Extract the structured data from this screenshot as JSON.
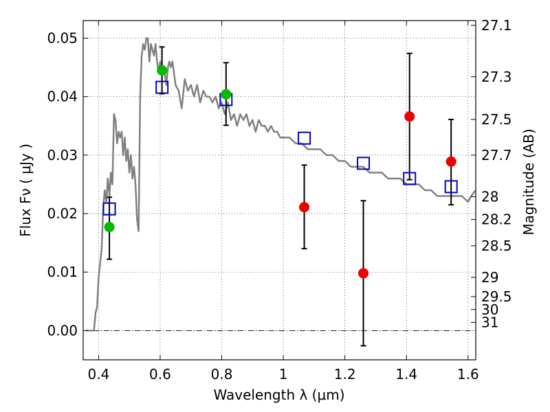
{
  "chart_data": {
    "type": "scatter",
    "xlabel": "Wavelength  λ (μm)",
    "ylabel": "Flux  Fν  ( μJy )",
    "y2label": "Magnitude (AB)",
    "xlim": [
      0.35,
      1.625
    ],
    "ylim": [
      -0.005,
      0.053
    ],
    "grid": true,
    "x_ticks": [
      0.4,
      0.6,
      0.8,
      1.0,
      1.2,
      1.4,
      1.6
    ],
    "x_tick_labels": [
      "0.4",
      "0.6",
      "0.8",
      "1",
      "1.2",
      "1.4",
      "1.6"
    ],
    "y_ticks": [
      0.0,
      0.01,
      0.02,
      0.03,
      0.04,
      0.05
    ],
    "y_tick_labels": [
      "0.00",
      "0.01",
      "0.02",
      "0.03",
      "0.04",
      "0.05"
    ],
    "y2_ticks": [
      {
        "label": "27.1",
        "flux": 0.0522
      },
      {
        "label": "27.3",
        "flux": 0.0434
      },
      {
        "label": "27.5",
        "flux": 0.0361
      },
      {
        "label": "27.7",
        "flux": 0.03
      },
      {
        "label": "28",
        "flux": 0.0229
      },
      {
        "label": "28.2",
        "flux": 0.019
      },
      {
        "label": "28.5",
        "flux": 0.0145
      },
      {
        "label": "29",
        "flux": 0.0091
      },
      {
        "label": "29.5",
        "flux": 0.0058
      },
      {
        "label": "30",
        "flux": 0.0036
      },
      {
        "label": "31",
        "flux": 0.0014
      }
    ],
    "sed_model": {
      "color": "#808080",
      "x": [
        0.36,
        0.38,
        0.385,
        0.39,
        0.395,
        0.4,
        0.41,
        0.415,
        0.42,
        0.425,
        0.43,
        0.435,
        0.44,
        0.445,
        0.45,
        0.455,
        0.46,
        0.465,
        0.47,
        0.475,
        0.48,
        0.485,
        0.49,
        0.495,
        0.5,
        0.505,
        0.51,
        0.515,
        0.52,
        0.525,
        0.53,
        0.535,
        0.54,
        0.545,
        0.55,
        0.555,
        0.56,
        0.565,
        0.57,
        0.575,
        0.58,
        0.585,
        0.59,
        0.595,
        0.6,
        0.605,
        0.61,
        0.615,
        0.62,
        0.625,
        0.63,
        0.635,
        0.64,
        0.645,
        0.65,
        0.66,
        0.67,
        0.68,
        0.69,
        0.7,
        0.71,
        0.72,
        0.73,
        0.74,
        0.75,
        0.76,
        0.77,
        0.78,
        0.79,
        0.8,
        0.81,
        0.82,
        0.83,
        0.84,
        0.85,
        0.86,
        0.87,
        0.88,
        0.89,
        0.9,
        0.91,
        0.92,
        0.93,
        0.94,
        0.95,
        0.96,
        0.97,
        0.98,
        0.99,
        1.0,
        1.02,
        1.04,
        1.06,
        1.08,
        1.1,
        1.12,
        1.14,
        1.16,
        1.18,
        1.2,
        1.22,
        1.24,
        1.26,
        1.28,
        1.3,
        1.32,
        1.34,
        1.36,
        1.38,
        1.4,
        1.42,
        1.44,
        1.46,
        1.48,
        1.5,
        1.52,
        1.54,
        1.56,
        1.58,
        1.6,
        1.61,
        1.625
      ],
      "y": [
        0.0,
        0.0,
        0.0,
        0.003,
        0.004,
        0.009,
        0.014,
        0.021,
        0.024,
        0.022,
        0.026,
        0.023,
        0.027,
        0.025,
        0.037,
        0.036,
        0.032,
        0.034,
        0.033,
        0.034,
        0.03,
        0.033,
        0.029,
        0.031,
        0.027,
        0.03,
        0.026,
        0.028,
        0.025,
        0.019,
        0.017,
        0.04,
        0.047,
        0.049,
        0.048,
        0.05,
        0.05,
        0.046,
        0.049,
        0.048,
        0.047,
        0.049,
        0.046,
        0.044,
        0.046,
        0.045,
        0.045,
        0.044,
        0.042,
        0.045,
        0.046,
        0.045,
        0.046,
        0.044,
        0.042,
        0.041,
        0.038,
        0.043,
        0.041,
        0.042,
        0.04,
        0.042,
        0.039,
        0.041,
        0.04,
        0.04,
        0.039,
        0.04,
        0.038,
        0.039,
        0.037,
        0.039,
        0.036,
        0.037,
        0.035,
        0.037,
        0.036,
        0.037,
        0.035,
        0.036,
        0.034,
        0.036,
        0.035,
        0.035,
        0.034,
        0.035,
        0.034,
        0.034,
        0.033,
        0.033,
        0.033,
        0.032,
        0.032,
        0.031,
        0.031,
        0.031,
        0.03,
        0.03,
        0.029,
        0.029,
        0.028,
        0.028,
        0.028,
        0.027,
        0.027,
        0.027,
        0.026,
        0.026,
        0.026,
        0.025,
        0.025,
        0.025,
        0.024,
        0.024,
        0.023,
        0.023,
        0.023,
        0.023,
        0.023,
        0.022,
        0.023,
        0.024
      ]
    },
    "model_photometry": {
      "color": "#0000cc",
      "marker": "open-square",
      "points": [
        {
          "x": 0.435,
          "y": 0.0208
        },
        {
          "x": 0.606,
          "y": 0.0416
        },
        {
          "x": 0.814,
          "y": 0.0395
        },
        {
          "x": 1.068,
          "y": 0.0329
        },
        {
          "x": 1.26,
          "y": 0.0286
        },
        {
          "x": 1.41,
          "y": 0.026
        },
        {
          "x": 1.545,
          "y": 0.0246
        }
      ]
    },
    "observed_optical": {
      "color": "#00bb00",
      "marker": "filled-circle",
      "points": [
        {
          "x": 0.435,
          "y": 0.0177,
          "err_low": 0.0122,
          "err_high": 0.0228
        },
        {
          "x": 0.606,
          "y": 0.0445,
          "err_low": 0.0405,
          "err_high": 0.0485
        },
        {
          "x": 0.814,
          "y": 0.0404,
          "err_low": 0.0351,
          "err_high": 0.0458
        }
      ]
    },
    "observed_nir": {
      "color": "#ee0000",
      "marker": "filled-circle",
      "points": [
        {
          "x": 1.068,
          "y": 0.0211,
          "err_low": 0.014,
          "err_high": 0.0283
        },
        {
          "x": 1.26,
          "y": 0.0098,
          "err_low": -0.0026,
          "err_high": 0.0222
        },
        {
          "x": 1.41,
          "y": 0.0366,
          "err_low": 0.0258,
          "err_high": 0.0474
        },
        {
          "x": 1.545,
          "y": 0.0289,
          "err_low": 0.0215,
          "err_high": 0.0361
        }
      ]
    }
  }
}
